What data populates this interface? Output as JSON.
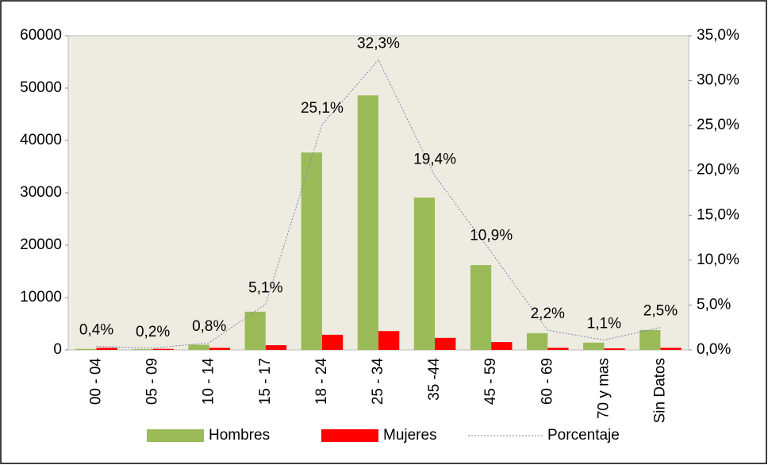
{
  "chart_data": {
    "type": "bar",
    "categories": [
      "00 - 04",
      "05 - 09",
      "10 - 14",
      "15 - 17",
      "18 - 24",
      "25 - 34",
      "35 -44",
      "45 - 59",
      "60 - 69",
      "70 y mas",
      "Sin Datos"
    ],
    "series": [
      {
        "name": "Hombres",
        "color": "#9bbb59",
        "values": [
          200,
          150,
          1000,
          7300,
          37700,
          48600,
          29100,
          16200,
          3200,
          1400,
          3800
        ]
      },
      {
        "name": "Mujeres",
        "color": "#ff0000",
        "values": [
          400,
          200,
          400,
          900,
          2900,
          3600,
          2300,
          1500,
          400,
          300,
          400
        ]
      },
      {
        "name": "Porcentaje",
        "color": "#8080b0",
        "type": "line",
        "axis": "y2",
        "values": [
          0.4,
          0.2,
          0.8,
          5.1,
          25.1,
          32.3,
          19.4,
          10.9,
          2.2,
          1.1,
          2.5
        ],
        "value_labels": [
          "0,4%",
          "0,2%",
          "0,8%",
          "5,1%",
          "25,1%",
          "32,3%",
          "19,4%",
          "10,9%",
          "2,2%",
          "1,1%",
          "2,5%"
        ]
      }
    ],
    "ylim": [
      0,
      60000
    ],
    "yticks": [
      0,
      10000,
      20000,
      30000,
      40000,
      50000,
      60000
    ],
    "y2lim": [
      0,
      35
    ],
    "y2ticks": [
      {
        "value": 0,
        "label": "0,0%"
      },
      {
        "value": 5,
        "label": "5,0%"
      },
      {
        "value": 10,
        "label": "10,0%"
      },
      {
        "value": 15,
        "label": "15,0%"
      },
      {
        "value": 20,
        "label": "20,0%"
      },
      {
        "value": 25,
        "label": "25,0%"
      },
      {
        "value": 30,
        "label": "30,0%"
      },
      {
        "value": 35,
        "label": "35,0%"
      }
    ],
    "grid": false,
    "legend": "bottom",
    "plot_background": "#eeece1"
  }
}
